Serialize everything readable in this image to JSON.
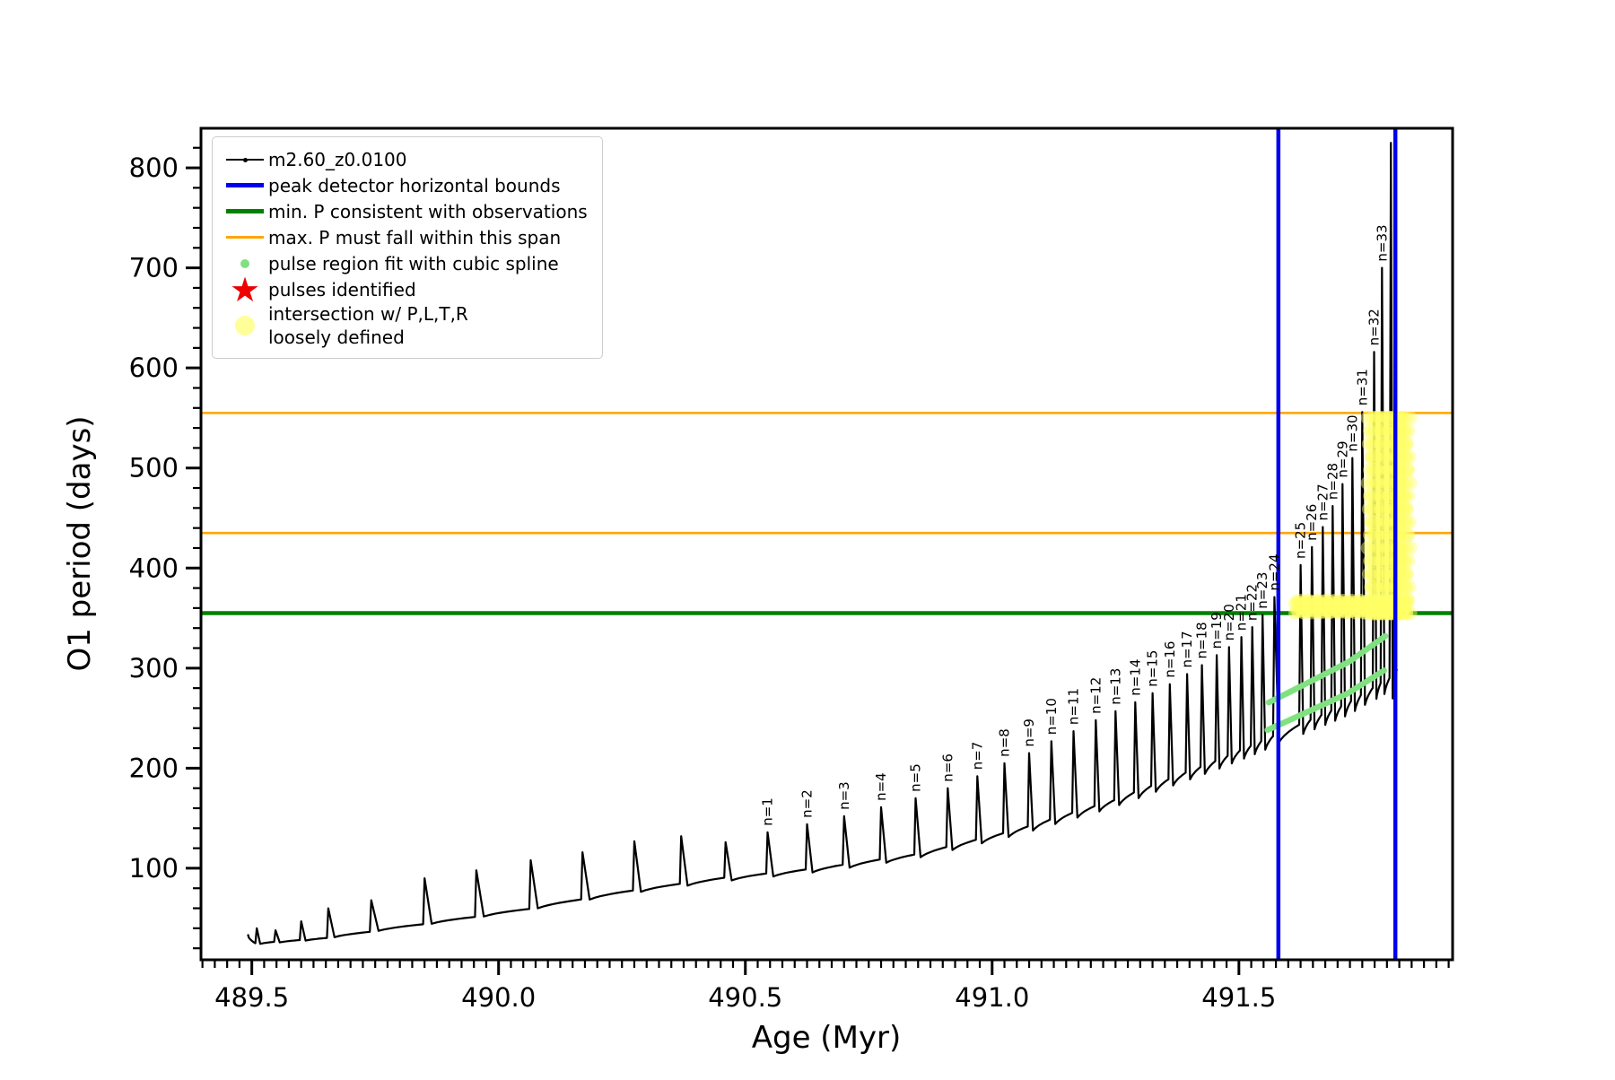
{
  "figure": {
    "background": "#ffffff"
  },
  "axes": {
    "xlabel": "Age (Myr)",
    "ylabel": "O1 period (days)",
    "xlim": [
      489.397,
      491.933
    ],
    "ylim": [
      8.5,
      839.5
    ],
    "xticks": {
      "major": [
        489.5,
        490.0,
        490.5,
        491.0,
        491.5
      ],
      "labels": [
        "489.5",
        "490.0",
        "490.5",
        "491.0",
        "491.5"
      ],
      "minor_step": 0.025
    },
    "yticks": {
      "major": [
        100,
        200,
        300,
        400,
        500,
        600,
        700,
        800
      ],
      "labels": [
        "100",
        "200",
        "300",
        "400",
        "500",
        "600",
        "700",
        "800"
      ],
      "minor_step": 20
    }
  },
  "legend": {
    "items": [
      {
        "swatch": "line-black",
        "label": "m2.60_z0.0100"
      },
      {
        "swatch": "line-blue",
        "label": "peak detector horizontal bounds"
      },
      {
        "swatch": "line-green",
        "label": "min. P consistent with observations"
      },
      {
        "swatch": "line-orange",
        "label": "max. P must fall within this span"
      },
      {
        "swatch": "dot-green",
        "label": "pulse region fit with cubic spline"
      },
      {
        "swatch": "star-red",
        "label": "pulses identified"
      },
      {
        "swatch": "dot-yellow",
        "label": "intersection w/ P,L,T,R\nloosely defined"
      }
    ]
  },
  "chart_data": {
    "type": "line",
    "series_name": "m2.60_z0.0100",
    "colors": {
      "curve": "#000000",
      "blue_vline": "#0000ee",
      "green_hline": "#008000",
      "orange_hline": "#ffa500",
      "spline_green": "#7fe07f",
      "pulse_red": "#ee0000",
      "intersection_yellow": "#ffff66"
    },
    "hlines": {
      "min_P_consistent": 355,
      "max_P_span": [
        435,
        555
      ]
    },
    "vlines": {
      "peak_detector_bounds": [
        491.58,
        491.817
      ]
    },
    "trough_anchors": [
      [
        489.48,
        24
      ],
      [
        489.65,
        30
      ],
      [
        489.85,
        44
      ],
      [
        490.05,
        58
      ],
      [
        490.25,
        76
      ],
      [
        490.45,
        90
      ],
      [
        490.65,
        100
      ],
      [
        490.85,
        114
      ],
      [
        491.05,
        138
      ],
      [
        491.25,
        168
      ],
      [
        491.45,
        206
      ],
      [
        491.6,
        238
      ],
      [
        491.72,
        264
      ],
      [
        491.8,
        288
      ],
      [
        491.87,
        306
      ]
    ],
    "pulses": [
      {
        "age": 489.51,
        "peak": 40,
        "label": ""
      },
      {
        "age": 489.548,
        "peak": 38,
        "label": ""
      },
      {
        "age": 489.6,
        "peak": 47,
        "label": ""
      },
      {
        "age": 489.655,
        "peak": 60,
        "label": ""
      },
      {
        "age": 489.742,
        "peak": 68,
        "label": ""
      },
      {
        "age": 489.85,
        "peak": 90,
        "label": ""
      },
      {
        "age": 489.955,
        "peak": 98,
        "label": ""
      },
      {
        "age": 490.065,
        "peak": 108,
        "label": ""
      },
      {
        "age": 490.17,
        "peak": 116,
        "label": ""
      },
      {
        "age": 490.275,
        "peak": 127,
        "label": ""
      },
      {
        "age": 490.37,
        "peak": 132,
        "label": ""
      },
      {
        "age": 490.46,
        "peak": 126,
        "label": ""
      },
      {
        "age": 490.545,
        "peak": 136,
        "label": "n=1"
      },
      {
        "age": 490.625,
        "peak": 144,
        "label": "n=2"
      },
      {
        "age": 490.7,
        "peak": 152,
        "label": "n=3"
      },
      {
        "age": 490.775,
        "peak": 161,
        "label": "n=4"
      },
      {
        "age": 490.845,
        "peak": 170,
        "label": "n=5"
      },
      {
        "age": 490.91,
        "peak": 180,
        "label": "n=6"
      },
      {
        "age": 490.97,
        "peak": 192,
        "label": "n=7"
      },
      {
        "age": 491.025,
        "peak": 205,
        "label": "n=8"
      },
      {
        "age": 491.075,
        "peak": 215,
        "label": "n=9"
      },
      {
        "age": 491.12,
        "peak": 227,
        "label": "n=10"
      },
      {
        "age": 491.165,
        "peak": 237,
        "label": "n=11"
      },
      {
        "age": 491.21,
        "peak": 248,
        "label": "n=12"
      },
      {
        "age": 491.25,
        "peak": 257,
        "label": "n=13"
      },
      {
        "age": 491.29,
        "peak": 266,
        "label": "n=14"
      },
      {
        "age": 491.325,
        "peak": 275,
        "label": "n=15"
      },
      {
        "age": 491.36,
        "peak": 284,
        "label": "n=16"
      },
      {
        "age": 491.395,
        "peak": 294,
        "label": "n=17"
      },
      {
        "age": 491.425,
        "peak": 303,
        "label": "n=18"
      },
      {
        "age": 491.455,
        "peak": 313,
        "label": "n=19"
      },
      {
        "age": 491.48,
        "peak": 321,
        "label": "n=20"
      },
      {
        "age": 491.505,
        "peak": 331,
        "label": "n=21"
      },
      {
        "age": 491.527,
        "peak": 341,
        "label": "n=22"
      },
      {
        "age": 491.548,
        "peak": 353,
        "label": "n=23"
      },
      {
        "age": 491.572,
        "peak": 371,
        "label": "n=24"
      },
      {
        "age": 491.625,
        "peak": 403,
        "label": "n=25"
      },
      {
        "age": 491.648,
        "peak": 421,
        "label": "n=26"
      },
      {
        "age": 491.67,
        "peak": 441,
        "label": "n=27"
      },
      {
        "age": 491.69,
        "peak": 462,
        "label": "n=28"
      },
      {
        "age": 491.71,
        "peak": 484,
        "label": "n=29"
      },
      {
        "age": 491.73,
        "peak": 510,
        "label": "n=30"
      },
      {
        "age": 491.75,
        "peak": 556,
        "label": "n=31"
      },
      {
        "age": 491.774,
        "peak": 616,
        "label": "n=32"
      },
      {
        "age": 491.79,
        "peak": 700,
        "label": "n=33"
      },
      {
        "age": 491.808,
        "peak": 825,
        "label": ""
      }
    ],
    "scatter": {
      "green_spline_region": {
        "age_range": [
          491.558,
          491.796
        ]
      },
      "yellow_band": {
        "age_range": [
          491.613,
          491.843
        ],
        "period_range": [
          355,
          370
        ]
      },
      "yellow_blob": {
        "age_range": [
          491.766,
          491.843
        ],
        "period_range": [
          355,
          558
        ]
      }
    }
  }
}
